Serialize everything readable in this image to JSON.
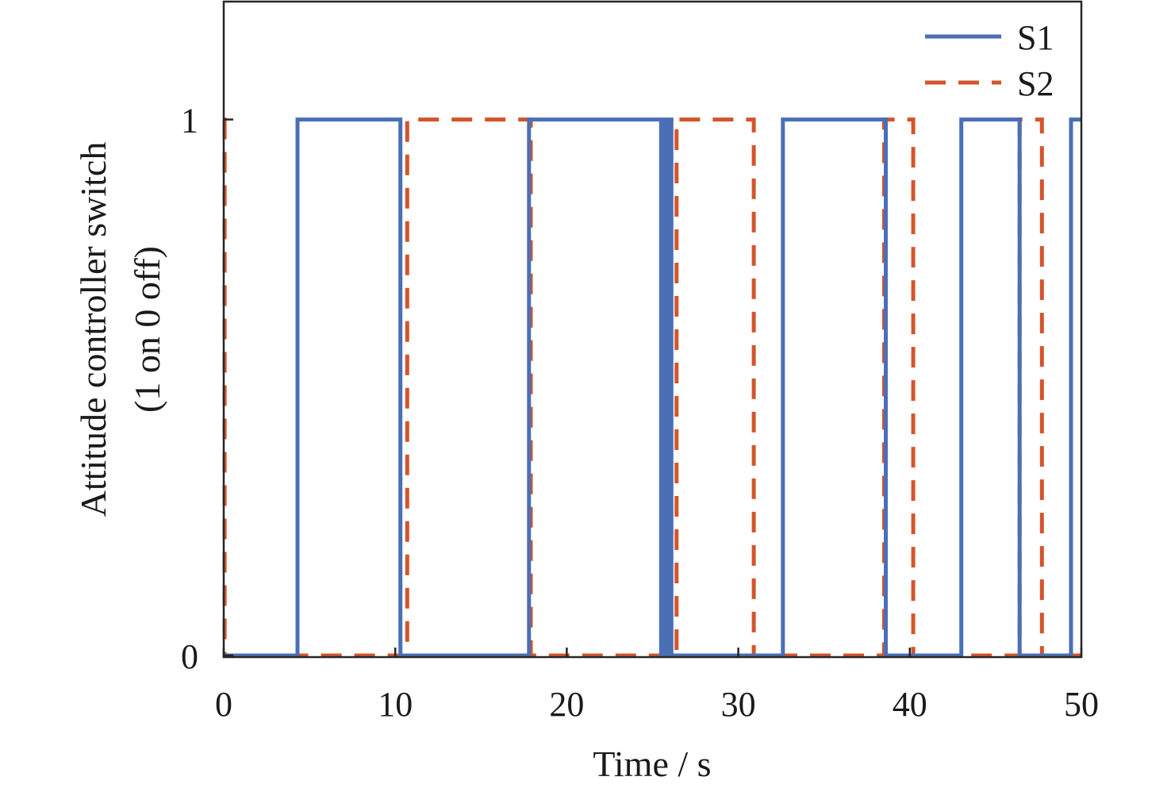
{
  "chart_data": {
    "type": "line",
    "title": "",
    "xlabel": "Time / s",
    "ylabel_line1": "Attitude controller switch",
    "ylabel_line2": "(1 on 0 off)",
    "xlim": [
      0,
      50
    ],
    "ylim": [
      -0.003,
      1.22
    ],
    "xticks": [
      0,
      10,
      20,
      30,
      40,
      50
    ],
    "yticks": [
      0,
      1
    ],
    "grid": false,
    "legend_position": "top-right",
    "series": [
      {
        "name": "S1",
        "style": "solid",
        "color": "#4A6FB5",
        "x": [
          0,
          4.3,
          4.3,
          10.3,
          10.3,
          17.8,
          17.8,
          25.5,
          25.5,
          25.6,
          25.6,
          25.8,
          25.8,
          25.9,
          25.9,
          26.1,
          26.1,
          32.6,
          32.6,
          38.6,
          38.6,
          43.0,
          43.0,
          46.4,
          46.4,
          49.4,
          49.4,
          50
        ],
        "values": [
          0,
          0,
          1,
          1,
          0,
          0,
          1,
          1,
          0,
          0,
          1,
          1,
          0,
          0,
          1,
          1,
          0,
          0,
          1,
          1,
          0,
          0,
          1,
          1,
          0,
          0,
          1,
          1
        ]
      },
      {
        "name": "S2",
        "style": "dashed",
        "color": "#D2552B",
        "x": [
          0,
          0,
          0.05,
          0.05,
          10.7,
          10.7,
          17.9,
          17.9,
          26.4,
          26.4,
          30.9,
          30.9,
          38.5,
          38.5,
          40.2,
          40.2,
          46.4,
          46.4,
          47.7,
          47.7,
          50
        ],
        "values": [
          1,
          1,
          1,
          0,
          0,
          1,
          1,
          0,
          0,
          1,
          1,
          0,
          0,
          1,
          1,
          0,
          0,
          1,
          1,
          0,
          0
        ]
      }
    ]
  }
}
